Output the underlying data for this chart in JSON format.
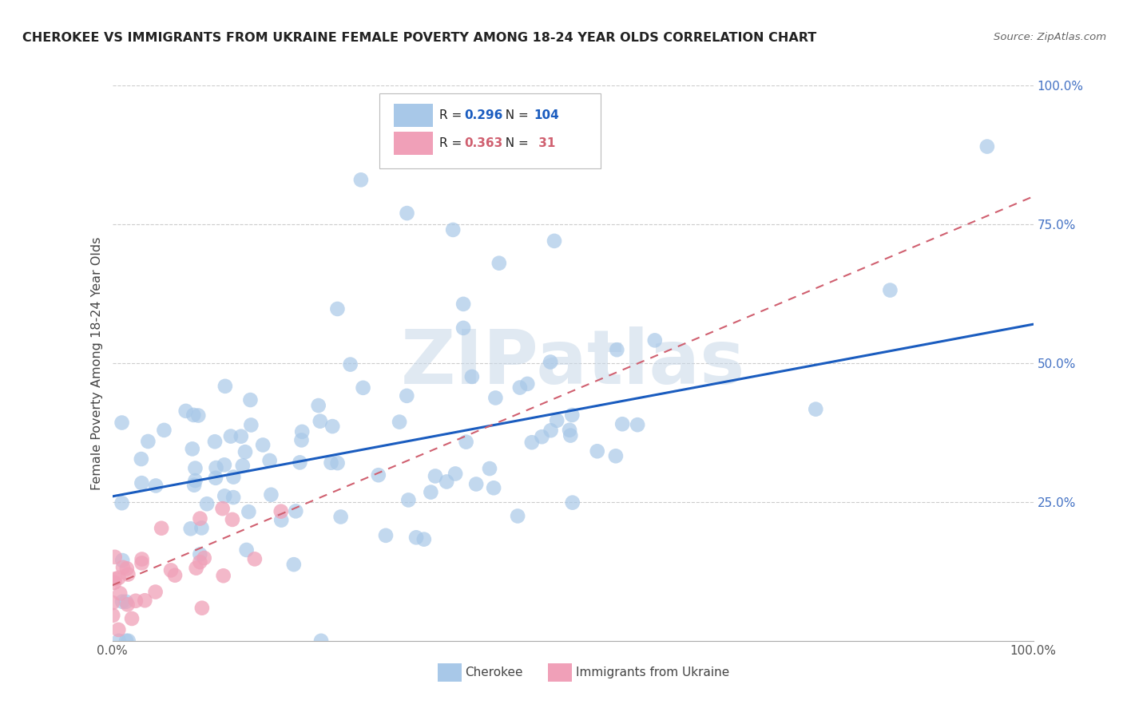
{
  "title": "CHEROKEE VS IMMIGRANTS FROM UKRAINE FEMALE POVERTY AMONG 18-24 YEAR OLDS CORRELATION CHART",
  "source": "Source: ZipAtlas.com",
  "ylabel": "Female Poverty Among 18-24 Year Olds",
  "xlim": [
    0,
    1.0
  ],
  "ylim": [
    0,
    1.0
  ],
  "cherokee_R": 0.296,
  "cherokee_N": 104,
  "ukraine_R": 0.363,
  "ukraine_N": 31,
  "cherokee_color": "#a8c8e8",
  "ukraine_color": "#f0a0b8",
  "cherokee_line_color": "#1a5cbf",
  "ukraine_line_color": "#d06070",
  "background_color": "#ffffff",
  "grid_color": "#cccccc",
  "cherokee_line_start_y": 0.26,
  "cherokee_line_end_y": 0.57,
  "ukraine_line_start_y": 0.1,
  "ukraine_line_end_y": 0.8,
  "watermark_text": "ZIPatlas",
  "legend_label1": "Cherokee",
  "legend_label2": "Immigrants from Ukraine"
}
